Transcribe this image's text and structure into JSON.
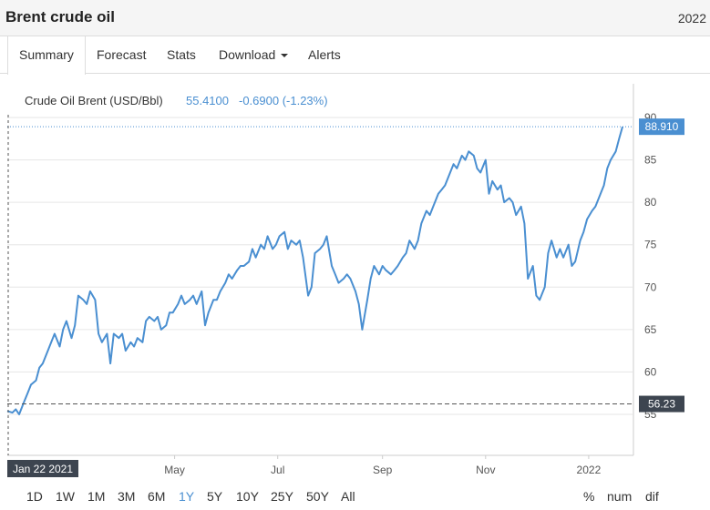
{
  "header": {
    "title": "Brent crude oil",
    "year": "2022"
  },
  "tabs": [
    {
      "label": "Summary"
    },
    {
      "label": "Forecast"
    },
    {
      "label": "Stats"
    },
    {
      "label": "Download"
    },
    {
      "label": "Alerts"
    }
  ],
  "legend": {
    "name": "Crude Oil Brent (USD/Bbl)",
    "value": "55.4100",
    "change": "-0.6900 (-1.23%)"
  },
  "ranges": [
    "1D",
    "1W",
    "1M",
    "3M",
    "6M",
    "1Y",
    "5Y",
    "10Y",
    "25Y",
    "50Y",
    "All"
  ],
  "active_range": "1Y",
  "options": [
    "%",
    "num",
    "dif"
  ],
  "colors": {
    "line": "#4a8fd1",
    "last_tag": "#4a8fd1",
    "crosshair_tag": "#3d4550"
  },
  "chart_data": {
    "type": "line",
    "series": [
      {
        "x": [
          "2021-01-22",
          "2021-01-25",
          "2021-01-27",
          "2021-01-29",
          "2021-02-01",
          "2021-02-03",
          "2021-02-05",
          "2021-02-08",
          "2021-02-10",
          "2021-02-12",
          "2021-02-15",
          "2021-02-17",
          "2021-02-19",
          "2021-02-22",
          "2021-02-24",
          "2021-02-26",
          "2021-03-01",
          "2021-03-03",
          "2021-03-05",
          "2021-03-08",
          "2021-03-10",
          "2021-03-12",
          "2021-03-15",
          "2021-03-17",
          "2021-03-19",
          "2021-03-22",
          "2021-03-24",
          "2021-03-26",
          "2021-03-29",
          "2021-03-31",
          "2021-04-02",
          "2021-04-05",
          "2021-04-07",
          "2021-04-09",
          "2021-04-12",
          "2021-04-14",
          "2021-04-16",
          "2021-04-19",
          "2021-04-21",
          "2021-04-23",
          "2021-04-26",
          "2021-04-28",
          "2021-04-30",
          "2021-05-03",
          "2021-05-05",
          "2021-05-07",
          "2021-05-10",
          "2021-05-12",
          "2021-05-14",
          "2021-05-17",
          "2021-05-19",
          "2021-05-21",
          "2021-05-24",
          "2021-05-26",
          "2021-05-28",
          "2021-05-31",
          "2021-06-02",
          "2021-06-04",
          "2021-06-07",
          "2021-06-09",
          "2021-06-11",
          "2021-06-14",
          "2021-06-16",
          "2021-06-18",
          "2021-06-21",
          "2021-06-23",
          "2021-06-25",
          "2021-06-28",
          "2021-06-30",
          "2021-07-02",
          "2021-07-05",
          "2021-07-07",
          "2021-07-09",
          "2021-07-12",
          "2021-07-14",
          "2021-07-16",
          "2021-07-19",
          "2021-07-21",
          "2021-07-23",
          "2021-07-26",
          "2021-07-28",
          "2021-07-30",
          "2021-08-02",
          "2021-08-04",
          "2021-08-06",
          "2021-08-09",
          "2021-08-11",
          "2021-08-13",
          "2021-08-16",
          "2021-08-18",
          "2021-08-20",
          "2021-08-23",
          "2021-08-25",
          "2021-08-27",
          "2021-08-30",
          "2021-09-01",
          "2021-09-03",
          "2021-09-06",
          "2021-09-08",
          "2021-09-10",
          "2021-09-13",
          "2021-09-15",
          "2021-09-17",
          "2021-09-20",
          "2021-09-22",
          "2021-09-24",
          "2021-09-27",
          "2021-09-29",
          "2021-10-01",
          "2021-10-04",
          "2021-10-06",
          "2021-10-08",
          "2021-10-11",
          "2021-10-13",
          "2021-10-15",
          "2021-10-18",
          "2021-10-20",
          "2021-10-22",
          "2021-10-25",
          "2021-10-27",
          "2021-10-29",
          "2021-11-01",
          "2021-11-03",
          "2021-11-05",
          "2021-11-08",
          "2021-11-10",
          "2021-11-12",
          "2021-11-15",
          "2021-11-17",
          "2021-11-19",
          "2021-11-22",
          "2021-11-24",
          "2021-11-26",
          "2021-11-29",
          "2021-12-01",
          "2021-12-03",
          "2021-12-06",
          "2021-12-08",
          "2021-12-10",
          "2021-12-13",
          "2021-12-15",
          "2021-12-17",
          "2021-12-20",
          "2021-12-22",
          "2021-12-24",
          "2021-12-27",
          "2021-12-29",
          "2021-12-31",
          "2022-01-03",
          "2022-01-05",
          "2022-01-07",
          "2022-01-10",
          "2022-01-12",
          "2022-01-14",
          "2022-01-17",
          "2022-01-19",
          "2022-01-21"
        ],
        "values": [
          55.4,
          55.2,
          55.6,
          55.0,
          56.5,
          57.5,
          58.5,
          59.0,
          60.5,
          61.0,
          62.5,
          63.5,
          64.5,
          63.0,
          65.0,
          66.0,
          64.0,
          65.5,
          69.0,
          68.5,
          68.0,
          69.5,
          68.5,
          64.5,
          63.5,
          64.5,
          61.0,
          64.5,
          64.0,
          64.5,
          62.5,
          63.5,
          63.0,
          64.0,
          63.5,
          66.0,
          66.5,
          66.0,
          66.5,
          65.0,
          65.5,
          67.0,
          67.0,
          68.0,
          69.0,
          68.0,
          68.5,
          69.0,
          68.0,
          69.5,
          65.5,
          67.0,
          68.5,
          68.5,
          69.5,
          70.5,
          71.5,
          71.0,
          72.0,
          72.5,
          72.5,
          73.0,
          74.5,
          73.5,
          75.0,
          74.5,
          76.0,
          74.5,
          75.0,
          76.0,
          76.5,
          74.5,
          75.5,
          75.0,
          75.5,
          73.5,
          69.0,
          70.0,
          74.0,
          74.5,
          75.0,
          76.0,
          72.5,
          71.5,
          70.5,
          71.0,
          71.5,
          71.0,
          69.5,
          68.0,
          65.0,
          68.5,
          71.0,
          72.5,
          71.5,
          72.5,
          72.0,
          71.5,
          72.0,
          72.5,
          73.5,
          74.0,
          75.5,
          74.5,
          75.5,
          77.5,
          79.0,
          78.5,
          79.5,
          81.0,
          81.5,
          82.0,
          83.5,
          84.5,
          84.0,
          85.5,
          85.0,
          86.0,
          85.5,
          84.0,
          83.5,
          85.0,
          81.0,
          82.5,
          81.5,
          82.0,
          80.0,
          80.5,
          80.0,
          78.5,
          79.5,
          77.5,
          71.0,
          72.5,
          69.0,
          68.5,
          70.0,
          74.0,
          75.5,
          73.5,
          74.5,
          73.5,
          75.0,
          72.5,
          73.0,
          75.5,
          76.5,
          78.0,
          79.0,
          79.5,
          80.5,
          82.0,
          84.0,
          85.0,
          86.0,
          87.5,
          88.91
        ]
      }
    ],
    "x_ticks": [
      "Jan 22 2021",
      "May",
      "Jul",
      "Sep",
      "Nov",
      "2022"
    ],
    "y_ticks": [
      55,
      60,
      65,
      70,
      75,
      80,
      85,
      90
    ],
    "ylim": [
      50,
      90
    ],
    "grid": true,
    "last_value": "88.910",
    "crosshair_value": "56.23",
    "crosshair_date": "Jan 22 2021"
  }
}
